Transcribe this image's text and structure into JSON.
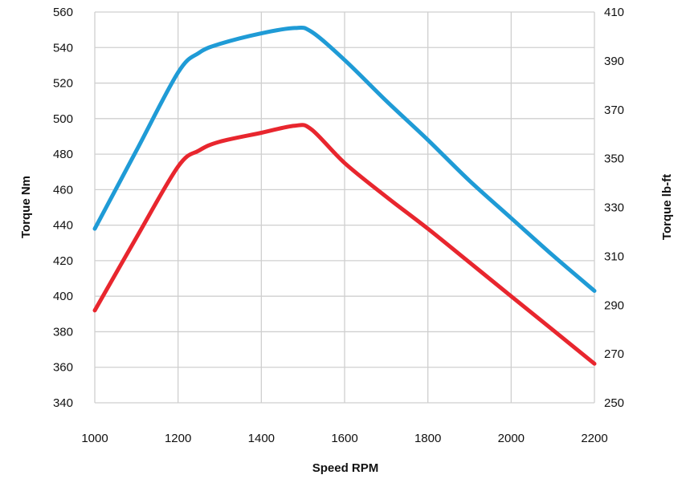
{
  "chart_data": {
    "type": "line",
    "xlabel": "Speed RPM",
    "ylabel": "Torque Nm",
    "y2label": "Torque lb-ft",
    "xlim": [
      1000,
      2200
    ],
    "ylim": [
      340,
      560
    ],
    "y2lim": [
      250,
      410
    ],
    "xticks": [
      1000,
      1200,
      1400,
      1600,
      1800,
      2000,
      2200
    ],
    "yticks": [
      340,
      360,
      380,
      400,
      420,
      440,
      460,
      480,
      500,
      520,
      540,
      560
    ],
    "y2ticks": [
      250,
      270,
      290,
      310,
      330,
      350,
      370,
      390,
      410
    ],
    "grid": true,
    "series": [
      {
        "color": "#1f9bd6",
        "axis": "left",
        "x": [
          1000,
          1100,
          1200,
          1250,
          1300,
          1400,
          1480,
          1520,
          1600,
          1700,
          1800,
          1900,
          2000,
          2100,
          2200
        ],
        "values": [
          438,
          482,
          526,
          537,
          542,
          548,
          551,
          549,
          533,
          510,
          488,
          465,
          444,
          423,
          403
        ]
      },
      {
        "color": "#e8262e",
        "axis": "left",
        "x": [
          1000,
          1100,
          1200,
          1250,
          1300,
          1400,
          1480,
          1520,
          1600,
          1700,
          1800,
          1900,
          2000,
          2100,
          2200
        ],
        "values": [
          392,
          433,
          473,
          482,
          487,
          492,
          496,
          494,
          475,
          456,
          438,
          419,
          400,
          381,
          362
        ]
      }
    ]
  }
}
